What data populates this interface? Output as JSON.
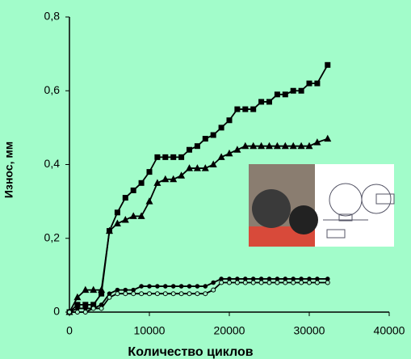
{
  "chart_data": {
    "type": "line",
    "xlabel": "Количество циклов",
    "ylabel": "Износ, мм",
    "x": [
      0,
      1000,
      2000,
      3000,
      4000,
      5000,
      6000,
      7000,
      8000,
      9000,
      10000,
      11000,
      12000,
      13000,
      14000,
      15000,
      16000,
      17000,
      18000,
      19000,
      20000,
      21000,
      22000,
      23000,
      24000,
      25000,
      26000,
      27000,
      28000,
      29000,
      30000,
      31000,
      32300
    ],
    "series": [
      {
        "color": "#000000",
        "marker": "square",
        "values": [
          0,
          0.02,
          0.02,
          0.02,
          0.05,
          0.22,
          0.27,
          0.31,
          0.33,
          0.35,
          0.38,
          0.42,
          0.42,
          0.42,
          0.42,
          0.44,
          0.45,
          0.47,
          0.48,
          0.5,
          0.52,
          0.55,
          0.55,
          0.55,
          0.57,
          0.57,
          0.59,
          0.59,
          0.6,
          0.6,
          0.62,
          0.62,
          0.67
        ]
      },
      {
        "color": "#000000",
        "marker": "triangle",
        "values": [
          0,
          0.04,
          0.06,
          0.06,
          0.06,
          0.22,
          0.24,
          0.25,
          0.26,
          0.26,
          0.3,
          0.35,
          0.36,
          0.36,
          0.37,
          0.39,
          0.39,
          0.39,
          0.4,
          0.42,
          0.43,
          0.44,
          0.45,
          0.45,
          0.45,
          0.45,
          0.45,
          0.45,
          0.45,
          0.45,
          0.45,
          0.46,
          0.47
        ]
      },
      {
        "color": "#000000",
        "marker": "circle",
        "values": [
          0,
          0.01,
          0.01,
          0.01,
          0.02,
          0.05,
          0.06,
          0.06,
          0.06,
          0.07,
          0.07,
          0.07,
          0.07,
          0.07,
          0.07,
          0.07,
          0.07,
          0.07,
          0.08,
          0.09,
          0.09,
          0.09,
          0.09,
          0.09,
          0.09,
          0.09,
          0.09,
          0.09,
          0.09,
          0.09,
          0.09,
          0.09,
          0.09
        ]
      },
      {
        "color": "#000000",
        "marker": "circle-open",
        "values": [
          0,
          0,
          0,
          0.01,
          0.01,
          0.04,
          0.05,
          0.05,
          0.05,
          0.05,
          0.05,
          0.05,
          0.05,
          0.05,
          0.05,
          0.05,
          0.05,
          0.05,
          0.06,
          0.08,
          0.08,
          0.08,
          0.08,
          0.08,
          0.08,
          0.08,
          0.08,
          0.08,
          0.08,
          0.08,
          0.08,
          0.08,
          0.08
        ]
      }
    ],
    "xlim": [
      0,
      40000
    ],
    "xticks": [
      0,
      10000,
      20000,
      30000,
      40000
    ],
    "ylim": [
      0,
      0.8
    ],
    "yticks": [
      0,
      {
        "value": 0.2,
        "label": "0,2"
      },
      {
        "value": 0.4,
        "label": "0,4"
      },
      {
        "value": 0.6,
        "label": "0,6"
      },
      {
        "value": 0.8,
        "label": "0,8"
      }
    ],
    "grid": false
  }
}
